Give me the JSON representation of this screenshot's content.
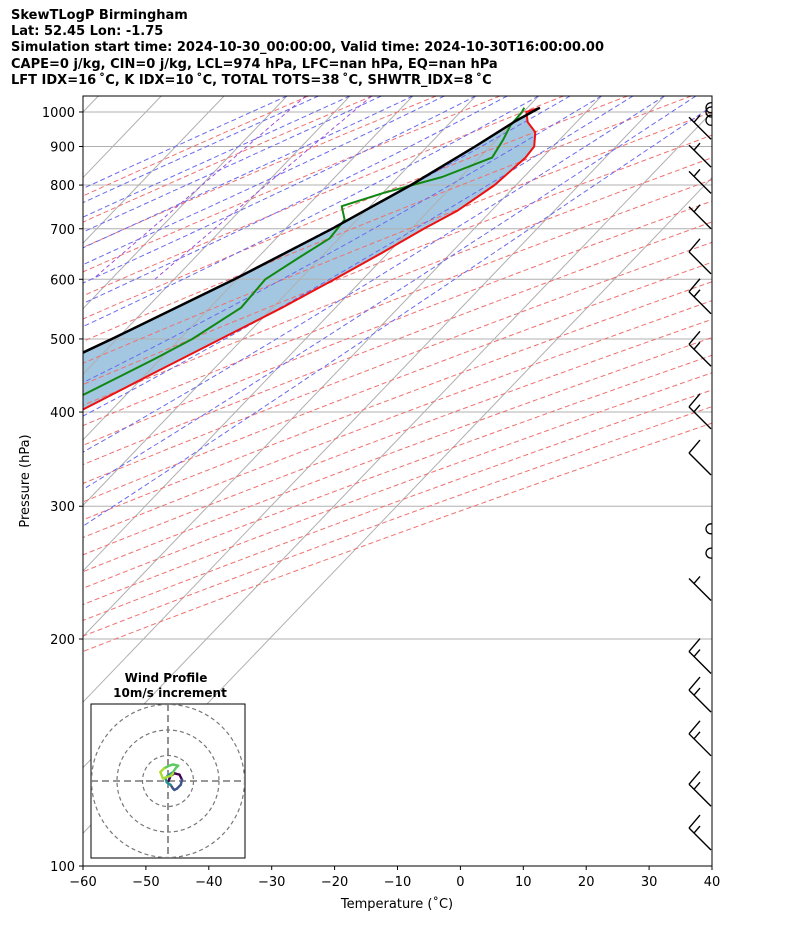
{
  "figure": {
    "title_lines": [
      "SkewTLogP Birmingham",
      "Lat: 52.45   Lon: -1.75",
      "Simulation start time: 2024-10-30_00:00:00, Valid time: 2024-10-30T16:00:00.00",
      "CAPE=0 j/kg, CIN=0 j/kg, LCL=974 hPa, LFC=nan hPa, EQ=nan hPa",
      "LFT IDX=16 ˚C, K IDX=10 ˚C, TOTAL TOTS=38 ˚C, SHWTR_IDX=8 ˚C"
    ]
  },
  "chart_data": {
    "type": "line",
    "subtype": "skew-t log-p diagram",
    "xlabel": "Temperature (˚C)",
    "ylabel": "Pressure (hPa)",
    "xlim": [
      -60,
      40
    ],
    "ylim": [
      1050,
      100
    ],
    "yscale": "log",
    "skew_deg_per_decade": 115,
    "grid": true,
    "x_ticks": [
      -60,
      -50,
      -40,
      -30,
      -20,
      -10,
      0,
      10,
      20,
      30,
      40
    ],
    "x_tick_labels": [
      "−60",
      "−50",
      "−40",
      "−30",
      "−20",
      "−10",
      "0",
      "10",
      "20",
      "30",
      "40"
    ],
    "y_ticks": [
      100,
      200,
      300,
      400,
      500,
      600,
      700,
      800,
      900,
      1000
    ],
    "y_tick_labels": [
      "100",
      "200",
      "300",
      "400",
      "500",
      "600",
      "700",
      "800",
      "900",
      "1000"
    ],
    "colors": {
      "temperature": "#ee1111",
      "dewpoint": "#118811",
      "parcel": "#000000",
      "shading": "#a3c7e0",
      "dry_adiabat": "#f07070",
      "moist_adiabat": "#6a6af0",
      "mixing_ratio": "#a050d8",
      "isotherm": "#b0b0b0",
      "wind_barb": "#000000"
    },
    "series": [
      {
        "name": "",
        "role": "temperature",
        "color": "#ee1111",
        "points": [
          [
            1013,
            12.0
          ],
          [
            1000,
            10.5
          ],
          [
            970,
            12.2
          ],
          [
            940,
            15.0
          ],
          [
            900,
            17.0
          ],
          [
            870,
            17.3
          ],
          [
            800,
            16.6
          ],
          [
            740,
            14.6
          ],
          [
            700,
            12.0
          ],
          [
            650,
            9.0
          ],
          [
            600,
            5.5
          ],
          [
            550,
            1.5
          ],
          [
            500,
            -3.5
          ],
          [
            450,
            -9.0
          ],
          [
            400,
            -15.0
          ],
          [
            350,
            -22.0
          ],
          [
            300,
            -30.5
          ],
          [
            250,
            -41.0
          ],
          [
            220,
            -48.5
          ],
          [
            200,
            -53.5
          ],
          [
            185,
            -56.0
          ],
          [
            160,
            -55.0
          ],
          [
            140,
            -56.0
          ],
          [
            120,
            -57.5
          ],
          [
            100,
            -60.0
          ]
        ]
      },
      {
        "name": "",
        "role": "dewpoint",
        "color": "#118811",
        "points": [
          [
            1013,
            9.5
          ],
          [
            1000,
            9.8
          ],
          [
            960,
            10.0
          ],
          [
            920,
            11.0
          ],
          [
            870,
            12.0
          ],
          [
            820,
            7.0
          ],
          [
            780,
            0.0
          ],
          [
            750,
            -4.5
          ],
          [
            720,
            -2.0
          ],
          [
            680,
            -1.5
          ],
          [
            640,
            -3.5
          ],
          [
            600,
            -5.5
          ],
          [
            550,
            -5.0
          ],
          [
            500,
            -8.0
          ],
          [
            470,
            -11.0
          ],
          [
            420,
            -17.0
          ],
          [
            390,
            -25.0
          ],
          [
            360,
            -22.0
          ],
          [
            330,
            -21.5
          ],
          [
            300,
            -28.5
          ],
          [
            250,
            -43.0
          ],
          [
            200,
            -61.0
          ],
          [
            185,
            -62.0
          ],
          [
            160,
            -61.0
          ],
          [
            140,
            -64.5
          ],
          [
            130,
            -67.0
          ],
          [
            120,
            -67.0
          ],
          [
            110,
            -67.5
          ],
          [
            100,
            -69.0
          ]
        ]
      },
      {
        "name": "",
        "role": "parcel",
        "color": "#000000",
        "points": [
          [
            1013,
            12.0
          ],
          [
            974,
            10.2
          ],
          [
            900,
            7.6
          ],
          [
            800,
            3.3
          ],
          [
            700,
            -2.6
          ],
          [
            600,
            -10.4
          ],
          [
            500,
            -20.8
          ],
          [
            400,
            -34.3
          ],
          [
            300,
            -51.9
          ],
          [
            250,
            -63.0
          ],
          [
            200,
            -76.3
          ],
          [
            150,
            -93.2
          ],
          [
            100,
            -118.0
          ]
        ]
      }
    ],
    "wind_barbs": [
      {
        "pressure_hpa": 1013,
        "speed_kt": 0
      },
      {
        "pressure_hpa": 1000,
        "speed_kt": 0
      },
      {
        "pressure_hpa": 975,
        "speed_kt": 0
      },
      {
        "pressure_hpa": 920,
        "speed_kt": 5
      },
      {
        "pressure_hpa": 845,
        "speed_kt": 5
      },
      {
        "pressure_hpa": 780,
        "speed_kt": 5
      },
      {
        "pressure_hpa": 700,
        "speed_kt": 5
      },
      {
        "pressure_hpa": 610,
        "speed_kt": 10
      },
      {
        "pressure_hpa": 540,
        "speed_kt": 15
      },
      {
        "pressure_hpa": 460,
        "speed_kt": 15
      },
      {
        "pressure_hpa": 380,
        "speed_kt": 15
      },
      {
        "pressure_hpa": 330,
        "speed_kt": 10
      },
      {
        "pressure_hpa": 280,
        "speed_kt": 0
      },
      {
        "pressure_hpa": 260,
        "speed_kt": 0
      },
      {
        "pressure_hpa": 225,
        "speed_kt": 5
      },
      {
        "pressure_hpa": 180,
        "speed_kt": 15
      },
      {
        "pressure_hpa": 160,
        "speed_kt": 15
      },
      {
        "pressure_hpa": 140,
        "speed_kt": 15
      },
      {
        "pressure_hpa": 120,
        "speed_kt": 15
      },
      {
        "pressure_hpa": 105,
        "speed_kt": 15
      }
    ],
    "inset": {
      "title_lines": [
        "Wind Profile",
        "10m/s increment"
      ],
      "type": "hodograph",
      "ring_increment_ms": 10,
      "rings_ms": [
        10,
        20,
        30
      ],
      "u_ms": [
        0.2,
        0.6,
        1.0,
        2.5,
        4.5,
        5.5,
        5.0,
        3.5,
        2.5,
        2.0,
        1.0,
        -0.5,
        -1.0,
        -0.2,
        2.0,
        3.0,
        4.0,
        2.0,
        0.5,
        -1.5,
        -3.0,
        -2.0,
        1.0,
        2.0
      ],
      "v_ms": [
        0.0,
        -1.0,
        -2.0,
        -3.0,
        -2.5,
        -0.5,
        1.5,
        3.0,
        3.5,
        3.0,
        1.5,
        0.5,
        -1.0,
        -2.0,
        -3.5,
        -5.0,
        -6.0,
        -6.5,
        -6.0,
        -5.0,
        -3.5,
        -1.0,
        -2.0,
        -3.0
      ]
    }
  }
}
